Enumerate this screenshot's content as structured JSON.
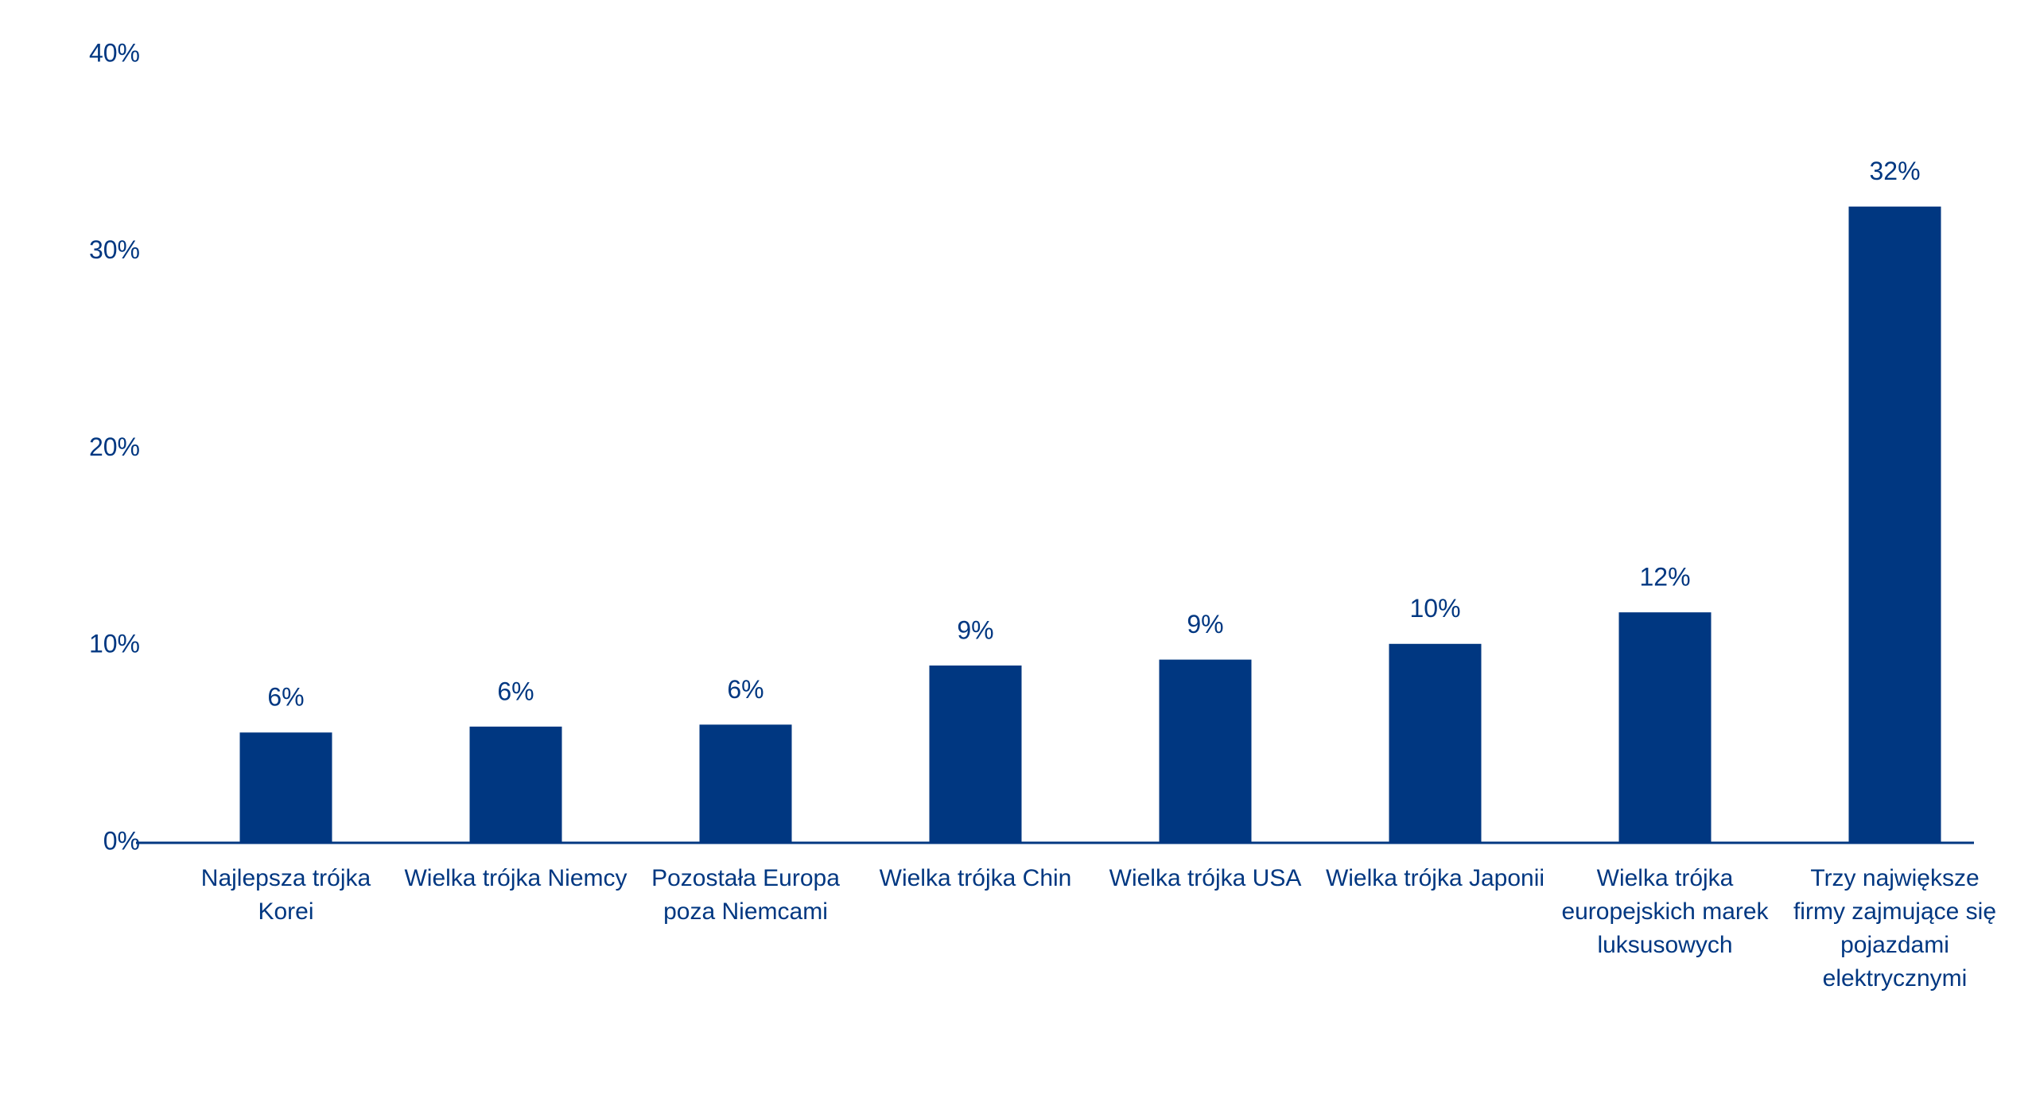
{
  "chart_data": {
    "type": "bar",
    "categories": [
      "Najlepsza trójka Korei",
      "Wielka trójka Niemcy",
      "Pozostała Europa poza Niemcami",
      "Wielka trójka Chin",
      "Wielka trójka USA",
      "Wielka trójka Japonii",
      "Wielka trójka europejskich marek luksusowych",
      "Trzy największe firmy zajmujące się pojazdami elektrycznymi"
    ],
    "values": [
      5.6,
      5.9,
      6.0,
      9.0,
      9.3,
      10.1,
      11.7,
      32.3
    ],
    "value_labels": [
      "6%",
      "6%",
      "6%",
      "9%",
      "9%",
      "10%",
      "12%",
      "32%"
    ],
    "color": "#003781",
    "ylim": [
      0,
      40
    ],
    "yticks": [
      {
        "value": 0,
        "label": "0%"
      },
      {
        "value": 10,
        "label": "10%"
      },
      {
        "value": 20,
        "label": "20%"
      },
      {
        "value": 30,
        "label": "30%"
      },
      {
        "value": 40,
        "label": "40%"
      }
    ],
    "grid": false
  }
}
